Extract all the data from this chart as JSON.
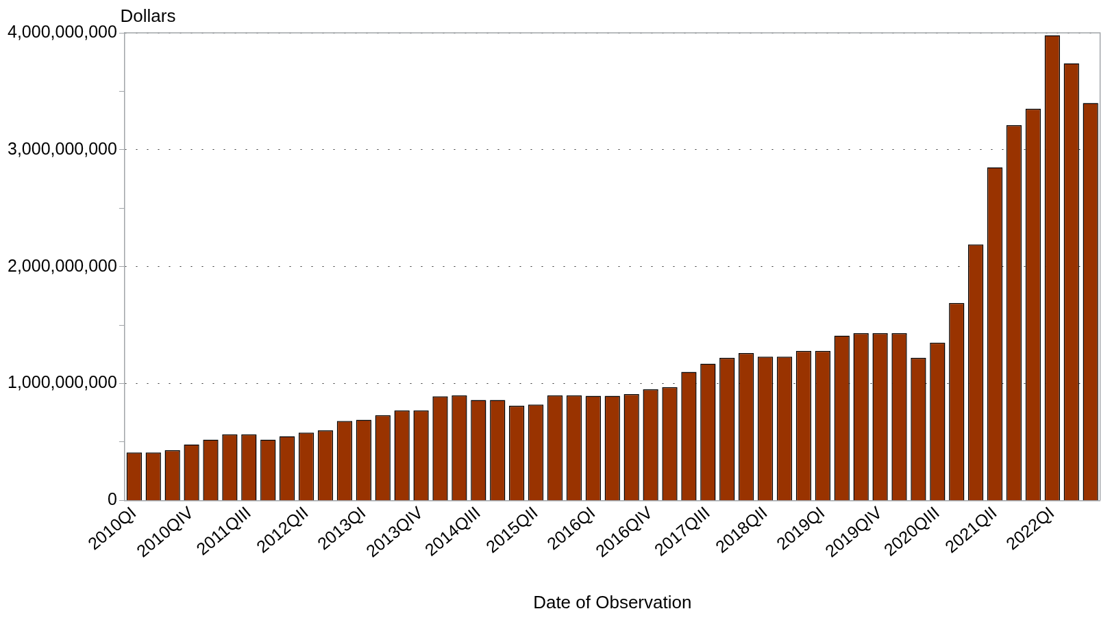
{
  "chart_data": {
    "type": "bar",
    "ylabel": "Dollars",
    "xlabel": "Date of Observation",
    "categories": [
      "2010QI",
      null,
      null,
      "2010QIV",
      null,
      null,
      "2011QIII",
      null,
      null,
      "2012QII",
      null,
      null,
      "2013QI",
      null,
      null,
      "2013QIV",
      null,
      null,
      "2014QIII",
      null,
      null,
      "2015QII",
      null,
      null,
      "2016QI",
      null,
      null,
      "2016QIV",
      null,
      null,
      "2017QIII",
      null,
      null,
      "2018QII",
      null,
      null,
      "2019QI",
      null,
      null,
      "2019QIV",
      null,
      null,
      "2020QIII",
      null,
      null,
      "2021QII",
      null,
      null,
      "2022QI",
      null,
      null
    ],
    "values": [
      410000000,
      410000000,
      430000000,
      480000000,
      520000000,
      565000000,
      565000000,
      520000000,
      550000000,
      580000000,
      600000000,
      680000000,
      690000000,
      730000000,
      770000000,
      770000000,
      890000000,
      900000000,
      860000000,
      860000000,
      810000000,
      820000000,
      900000000,
      900000000,
      895000000,
      895000000,
      910000000,
      950000000,
      970000000,
      1100000000,
      1170000000,
      1220000000,
      1260000000,
      1230000000,
      1230000000,
      1280000000,
      1280000000,
      1410000000,
      1430000000,
      1430000000,
      1430000000,
      1220000000,
      1350000000,
      1690000000,
      2190000000,
      2850000000,
      3210000000,
      3350000000,
      3980000000,
      3740000000,
      3400000000
    ],
    "color": "#993300",
    "ylim": [
      0,
      4000000000
    ],
    "yticks": [
      {
        "value": 0,
        "label": "0"
      },
      {
        "value": 500000000,
        "label": null
      },
      {
        "value": 1000000000,
        "label": "1,000,000,000"
      },
      {
        "value": 1500000000,
        "label": null
      },
      {
        "value": 2000000000,
        "label": "2,000,000,000"
      },
      {
        "value": 2500000000,
        "label": null
      },
      {
        "value": 3000000000,
        "label": "3,000,000,000"
      },
      {
        "value": 3500000000,
        "label": null
      },
      {
        "value": 4000000000,
        "label": "4,000,000,000"
      }
    ],
    "grid": "y",
    "legend": false
  }
}
